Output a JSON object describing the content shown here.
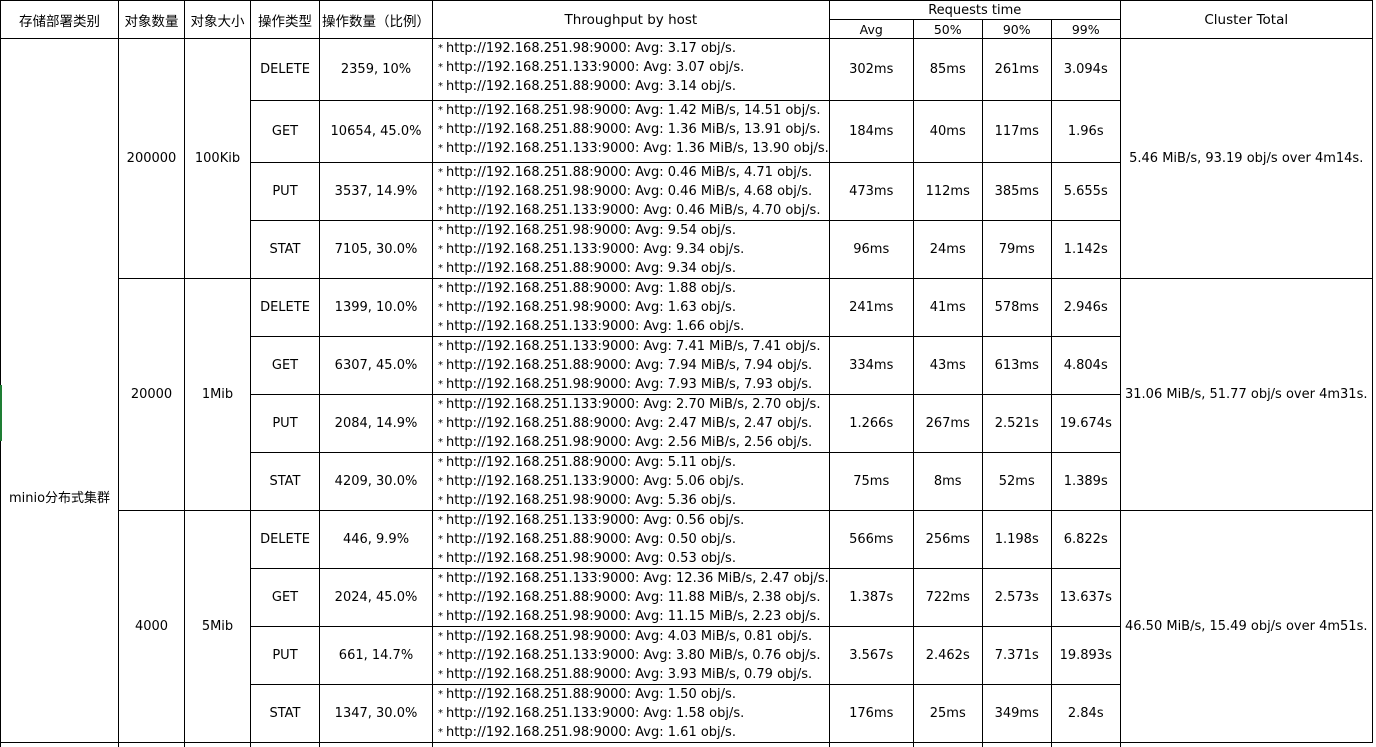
{
  "headers": {
    "deploy_type": "存储部署类别",
    "object_count": "对象数量",
    "object_size": "对象大小",
    "op_type": "操作类型",
    "op_count": "操作数量（比例）",
    "throughput": "Throughput by host",
    "requests_time": "Requests time",
    "avg": "Avg",
    "p50": "50%",
    "p90": "90%",
    "p99": "99%",
    "cluster_total": "Cluster Total"
  },
  "deploy_label": "minio分布式集群",
  "groups": [
    {
      "count": "200000",
      "size": "100Kib",
      "cluster_total": "5.46 MiB/s, 93.19 obj/s over 4m14s.",
      "rows": [
        {
          "op": "DELETE",
          "ops": "2359, 10%",
          "hosts": [
            "http://192.168.251.98:9000: Avg: 3.17 obj/s.",
            "http://192.168.251.133:9000: Avg: 3.07 obj/s.",
            "http://192.168.251.88:9000: Avg: 3.14 obj/s."
          ],
          "avg": "302ms",
          "p50": "85ms",
          "p90": "261ms",
          "p99": "3.094s"
        },
        {
          "op": "GET",
          "ops": "10654, 45.0%",
          "hosts": [
            "http://192.168.251.98:9000: Avg: 1.42 MiB/s, 14.51 obj/s.",
            "http://192.168.251.88:9000: Avg: 1.36 MiB/s, 13.91 obj/s.",
            "http://192.168.251.133:9000: Avg: 1.36 MiB/s, 13.90 obj/s."
          ],
          "avg": "184ms",
          "p50": "40ms",
          "p90": "117ms",
          "p99": "1.96s"
        },
        {
          "op": "PUT",
          "ops": "3537, 14.9%",
          "hosts": [
            "http://192.168.251.88:9000: Avg: 0.46 MiB/s, 4.71 obj/s.",
            "http://192.168.251.98:9000: Avg: 0.46 MiB/s, 4.68 obj/s.",
            "http://192.168.251.133:9000: Avg: 0.46 MiB/s, 4.70 obj/s."
          ],
          "avg": "473ms",
          "p50": "112ms",
          "p90": "385ms",
          "p99": "5.655s"
        },
        {
          "op": "STAT",
          "ops": "7105, 30.0%",
          "hosts": [
            "http://192.168.251.98:9000: Avg: 9.54 obj/s.",
            "http://192.168.251.133:9000: Avg: 9.34 obj/s.",
            "http://192.168.251.88:9000: Avg: 9.34 obj/s."
          ],
          "avg": "96ms",
          "p50": "24ms",
          "p90": "79ms",
          "p99": "1.142s"
        }
      ]
    },
    {
      "count": "20000",
      "size": "1Mib",
      "cluster_total": "31.06 MiB/s, 51.77 obj/s over 4m31s.",
      "rows": [
        {
          "op": "DELETE",
          "ops": "1399, 10.0%",
          "hosts": [
            "http://192.168.251.88:9000: Avg: 1.88 obj/s.",
            "http://192.168.251.98:9000: Avg: 1.63 obj/s.",
            "http://192.168.251.133:9000: Avg: 1.66 obj/s."
          ],
          "avg": "241ms",
          "p50": "41ms",
          "p90": "578ms",
          "p99": "2.946s"
        },
        {
          "op": "GET",
          "ops": "6307, 45.0%",
          "hosts": [
            "http://192.168.251.133:9000: Avg: 7.41 MiB/s, 7.41 obj/s.",
            "http://192.168.251.88:9000: Avg: 7.94 MiB/s, 7.94 obj/s.",
            "http://192.168.251.98:9000: Avg: 7.93 MiB/s, 7.93 obj/s."
          ],
          "avg": "334ms",
          "p50": "43ms",
          "p90": "613ms",
          "p99": "4.804s"
        },
        {
          "op": "PUT",
          "ops": "2084, 14.9%",
          "hosts": [
            "http://192.168.251.133:9000: Avg: 2.70 MiB/s, 2.70 obj/s.",
            "http://192.168.251.88:9000: Avg: 2.47 MiB/s, 2.47 obj/s.",
            "http://192.168.251.98:9000: Avg: 2.56 MiB/s, 2.56 obj/s."
          ],
          "avg": "1.266s",
          "p50": "267ms",
          "p90": "2.521s",
          "p99": "19.674s"
        },
        {
          "op": "STAT",
          "ops": "4209, 30.0%",
          "hosts": [
            "http://192.168.251.88:9000: Avg: 5.11 obj/s.",
            "http://192.168.251.133:9000: Avg: 5.06 obj/s.",
            "http://192.168.251.98:9000: Avg: 5.36 obj/s."
          ],
          "avg": "75ms",
          "p50": "8ms",
          "p90": "52ms",
          "p99": "1.389s"
        }
      ]
    },
    {
      "count": "4000",
      "size": "5Mib",
      "cluster_total": "46.50 MiB/s, 15.49 obj/s over 4m51s.",
      "rows": [
        {
          "op": "DELETE",
          "ops": "446, 9.9%",
          "hosts": [
            "http://192.168.251.133:9000: Avg: 0.56 obj/s.",
            "http://192.168.251.88:9000: Avg: 0.50 obj/s.",
            "http://192.168.251.98:9000: Avg: 0.53 obj/s."
          ],
          "avg": "566ms",
          "p50": "256ms",
          "p90": "1.198s",
          "p99": "6.822s"
        },
        {
          "op": "GET",
          "ops": "2024, 45.0%",
          "hosts": [
            "http://192.168.251.133:9000: Avg: 12.36 MiB/s, 2.47 obj/s.",
            "http://192.168.251.88:9000: Avg: 11.88 MiB/s, 2.38 obj/s.",
            "http://192.168.251.98:9000: Avg: 11.15 MiB/s, 2.23 obj/s."
          ],
          "avg": "1.387s",
          "p50": "722ms",
          "p90": "2.573s",
          "p99": "13.637s"
        },
        {
          "op": "PUT",
          "ops": "661, 14.7%",
          "hosts": [
            "http://192.168.251.98:9000: Avg: 4.03 MiB/s, 0.81 obj/s.",
            "http://192.168.251.133:9000: Avg: 3.80 MiB/s, 0.76 obj/s.",
            "http://192.168.251.88:9000: Avg: 3.93 MiB/s, 0.79 obj/s."
          ],
          "avg": "3.567s",
          "p50": "2.462s",
          "p90": "7.371s",
          "p99": "19.893s"
        },
        {
          "op": "STAT",
          "ops": "1347, 30.0%",
          "hosts": [
            "http://192.168.251.88:9000: Avg: 1.50 obj/s.",
            "http://192.168.251.133:9000: Avg: 1.58 obj/s.",
            "http://192.168.251.98:9000: Avg: 1.61 obj/s."
          ],
          "avg": "176ms",
          "p50": "25ms",
          "p90": "349ms",
          "p99": "2.84s"
        }
      ]
    }
  ]
}
